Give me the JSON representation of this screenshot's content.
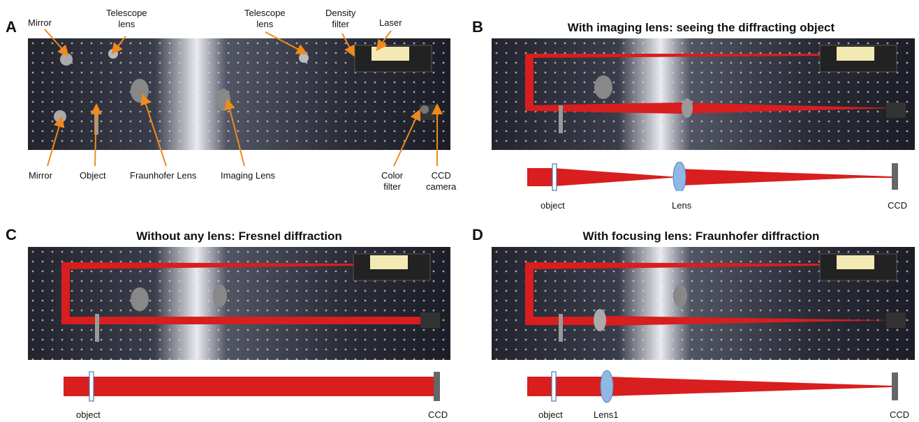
{
  "panels": {
    "a": {
      "letter": "A",
      "labels": {
        "mirror_top": "Mirror",
        "telescope_lens_1_line1": "Telescope",
        "telescope_lens_1_line2": "lens",
        "telescope_lens_2_line1": "Telescope",
        "telescope_lens_2_line2": "lens",
        "density_filter_line1": "Density",
        "density_filter_line2": "filter",
        "laser": "Laser",
        "mirror_bottom": "Mirror",
        "object": "Object",
        "fraunhofer_lens": "Fraunhofer Lens",
        "imaging_lens": "Imaging Lens",
        "color_filter_line1": "Color",
        "color_filter_line2": "filter",
        "ccd_camera_line1": "CCD",
        "ccd_camera_line2": "camera"
      }
    },
    "b": {
      "letter": "B",
      "title": "With imaging lens: seeing the diffracting object",
      "schematic_labels": {
        "object": "object",
        "lens": "Lens",
        "ccd": "CCD"
      }
    },
    "c": {
      "letter": "C",
      "title": "Without any lens: Fresnel diffraction",
      "schematic_labels": {
        "object": "object",
        "ccd": "CCD"
      }
    },
    "d": {
      "letter": "D",
      "title": "With focusing lens: Fraunhofer diffraction",
      "schematic_labels": {
        "object": "object",
        "lens": "Lens1",
        "ccd": "CCD"
      }
    }
  },
  "colors": {
    "beam": "#d81e1e",
    "label_arrow": "#f08a1c",
    "lens_fill": "#8fb8e6",
    "ccd": "#666666",
    "table_dark": "#1d1f2c",
    "table_light": "#c9ccd6"
  }
}
